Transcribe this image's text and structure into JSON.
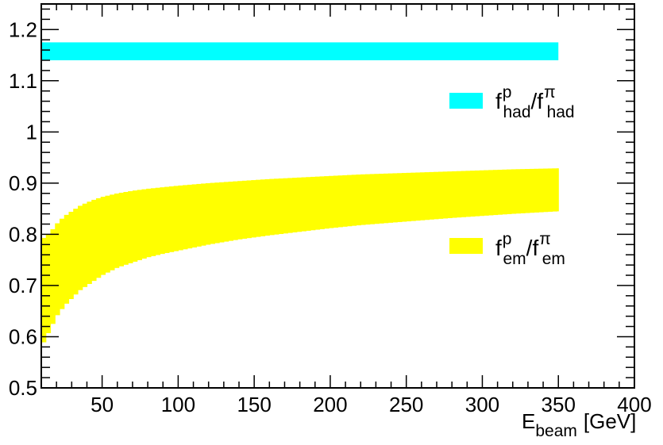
{
  "chart_data": {
    "type": "area",
    "title": "",
    "xlabel": {
      "main": "E",
      "sub": "beam",
      "unit": "[GeV]"
    },
    "ylabel": "",
    "xlim": [
      10,
      400
    ],
    "ylim": [
      0.5,
      1.25
    ],
    "grid": false,
    "legend_placement": "right",
    "x_ticks": [
      50,
      100,
      150,
      200,
      250,
      300,
      350,
      400
    ],
    "y_ticks": [
      0.5,
      0.6,
      0.7,
      0.8,
      0.9,
      1,
      1.1,
      1.2
    ],
    "x_tick_labels": [
      "50",
      "100",
      "150",
      "200",
      "250",
      "300",
      "350",
      "400"
    ],
    "y_tick_labels": [
      "0.5",
      "0.6",
      "0.7",
      "0.8",
      "0.9",
      "1",
      "1.1",
      "1.2"
    ],
    "series": [
      {
        "color": "#00ffff",
        "band": true,
        "x_range": [
          10,
          350
        ],
        "lower": 1.14,
        "upper": 1.175,
        "legend_label": {
          "f": "f",
          "sup1": "p",
          "sub1": "had",
          "slash": "/",
          "f2": "f",
          "sup2": "π",
          "sub2": "had"
        }
      },
      {
        "color": "#ffff00",
        "band": true,
        "x": [
          10,
          15,
          20,
          25,
          30,
          35,
          40,
          45,
          50,
          60,
          70,
          80,
          90,
          100,
          120,
          140,
          160,
          180,
          200,
          220,
          250,
          280,
          300,
          320,
          350
        ],
        "lower": [
          0.58,
          0.61,
          0.64,
          0.66,
          0.675,
          0.69,
          0.7,
          0.71,
          0.72,
          0.735,
          0.745,
          0.755,
          0.762,
          0.768,
          0.78,
          0.79,
          0.798,
          0.805,
          0.812,
          0.818,
          0.825,
          0.832,
          0.836,
          0.84,
          0.845
        ],
        "upper": [
          0.79,
          0.8,
          0.82,
          0.835,
          0.845,
          0.855,
          0.862,
          0.868,
          0.873,
          0.88,
          0.885,
          0.889,
          0.892,
          0.895,
          0.9,
          0.904,
          0.908,
          0.911,
          0.914,
          0.917,
          0.92,
          0.923,
          0.925,
          0.927,
          0.929
        ],
        "legend_label": {
          "f": "f",
          "sup1": "p",
          "sub1": "em",
          "slash": "/",
          "f2": "f",
          "sup2": "π",
          "sub2": "em"
        }
      }
    ]
  }
}
